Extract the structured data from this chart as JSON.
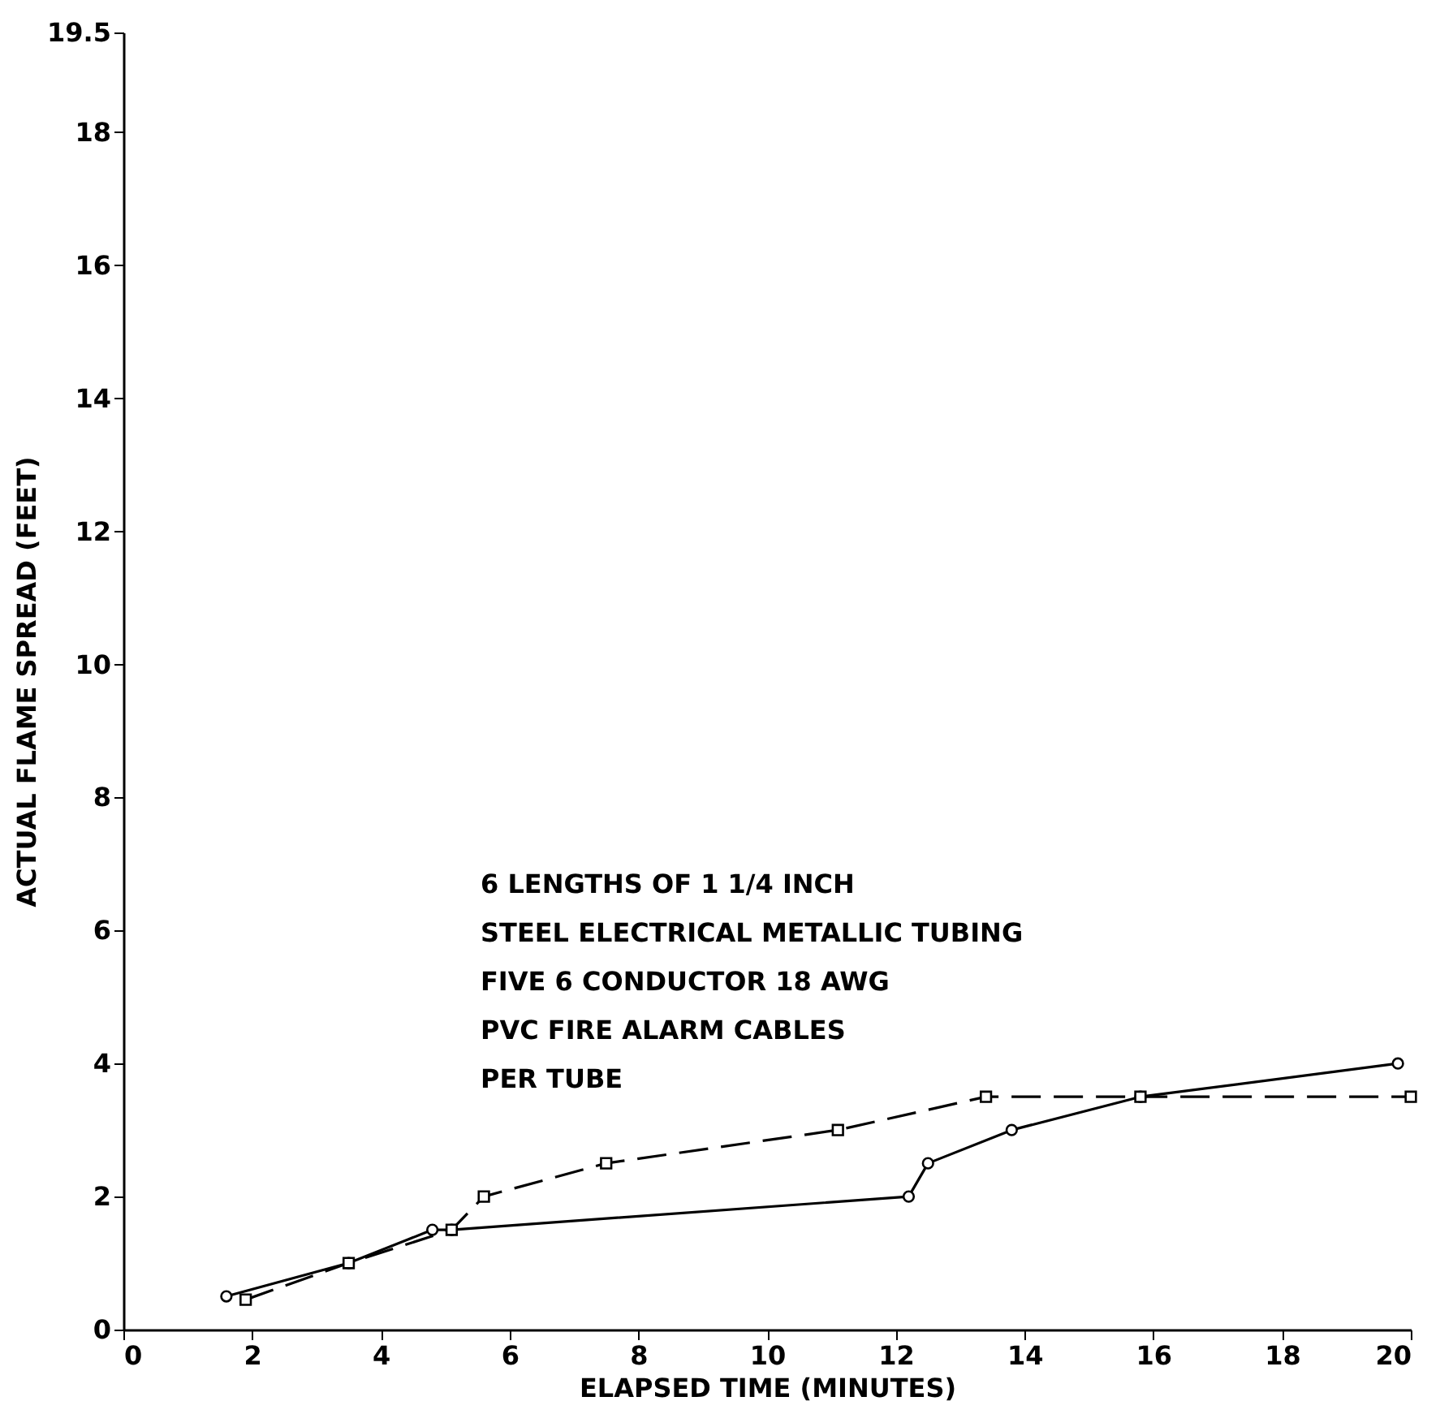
{
  "chart_data": {
    "type": "line",
    "xlabel": "ELAPSED TIME (MINUTES)",
    "ylabel": "ACTUAL FLAME SPREAD (FEET)",
    "xlim": [
      0,
      20
    ],
    "xticks": [
      0,
      2,
      4,
      6,
      8,
      10,
      12,
      14,
      16,
      18,
      20
    ],
    "ylim": [
      0,
      19.5
    ],
    "yticks": [
      0,
      2,
      4,
      6,
      8,
      10,
      12,
      14,
      16,
      18,
      19.5
    ],
    "grid": false,
    "annotations": [
      "6 LENGTHS OF 1 1/4 INCH",
      "STEEL ELECTRICAL METALLIC TUBING",
      "FIVE 6 CONDUCTOR 18 AWG",
      "PVC FIRE ALARM CABLES",
      "PER TUBE"
    ],
    "series": [
      {
        "color": "#000000",
        "marker": "circle",
        "line_style": "solid",
        "x": [
          1.6,
          3.5,
          4.8,
          5.1,
          12.2,
          12.5,
          13.8,
          15.8,
          19.8
        ],
        "values": [
          0.5,
          1.0,
          1.5,
          1.5,
          2.0,
          2.5,
          3.0,
          3.5,
          4.0
        ]
      },
      {
        "color": "#000000",
        "marker": "square",
        "line_style": "dashed",
        "x": [
          1.9,
          3.5,
          5.1,
          5.6,
          7.5,
          11.1,
          13.4,
          15.8,
          20
        ],
        "values": [
          0.45,
          1.0,
          1.5,
          2.0,
          2.5,
          3.0,
          3.5,
          3.5,
          3.5
        ]
      }
    ]
  }
}
